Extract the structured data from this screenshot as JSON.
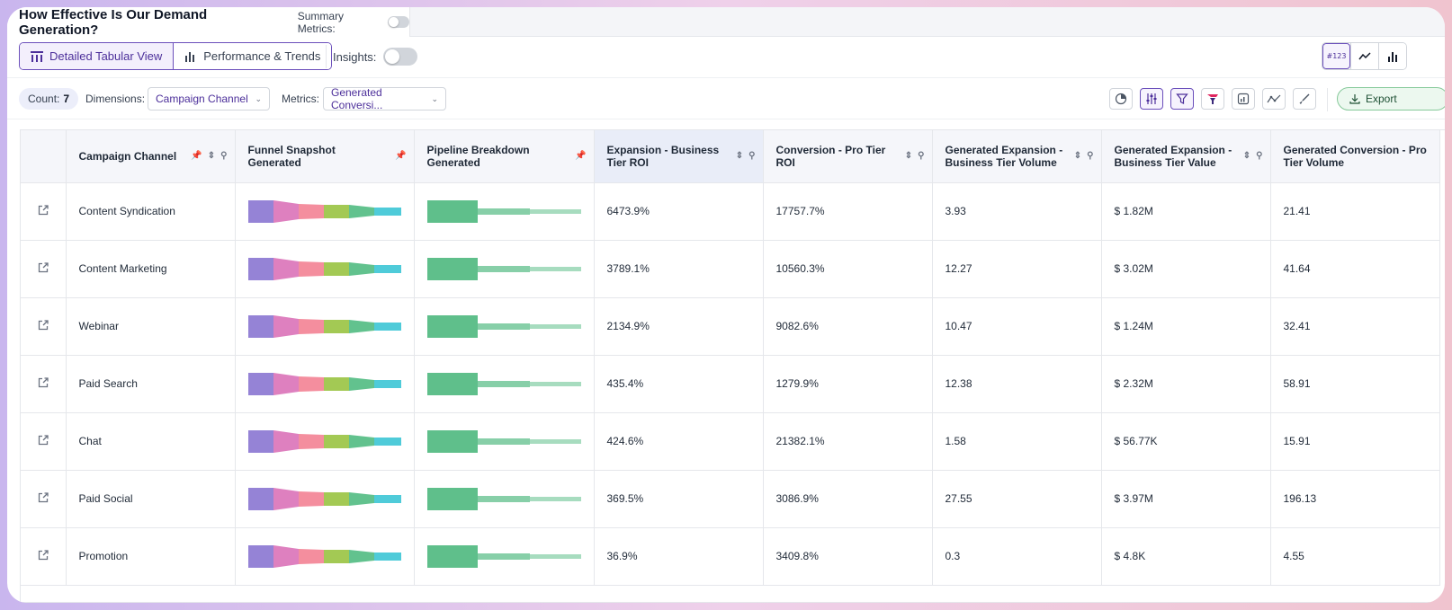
{
  "header": {
    "title": "How Effective Is Our Demand Generation?",
    "summary_label": "Summary Metrics:"
  },
  "view_tabs": {
    "detailed": "Detailed Tabular View",
    "performance": "Performance & Trends",
    "insights_label": "Insights:"
  },
  "viz_toggle": {
    "number_label": "#123"
  },
  "filters": {
    "count_label": "Count:",
    "count_value": "7",
    "dimensions_label": "Dimensions:",
    "dimensions_value": "Campaign Channel",
    "metrics_label": "Metrics:",
    "metrics_value": "Generated Conversi...",
    "export_label": "Export"
  },
  "table": {
    "headers": [
      "Campaign Channel",
      "Funnel Snapshot Generated",
      "Pipeline Breakdown Generated",
      "Expansion - Business Tier ROI",
      "Conversion - Pro Tier ROI",
      "Generated Expansion - Business Tier Volume",
      "Generated Expansion - Business Tier Value",
      "Generated Conversion - Pro Tier Volume"
    ],
    "rows": [
      {
        "channel": "Content Syndication",
        "exp_roi": "6473.9%",
        "conv_roi": "17757.7%",
        "exp_vol": "3.93",
        "exp_val": "$ 1.82M",
        "conv_vol": "21.41"
      },
      {
        "channel": "Content Marketing",
        "exp_roi": "3789.1%",
        "conv_roi": "10560.3%",
        "exp_vol": "12.27",
        "exp_val": "$ 3.02M",
        "conv_vol": "41.64"
      },
      {
        "channel": "Webinar",
        "exp_roi": "2134.9%",
        "conv_roi": "9082.6%",
        "exp_vol": "10.47",
        "exp_val": "$ 1.24M",
        "conv_vol": "32.41"
      },
      {
        "channel": "Paid Search",
        "exp_roi": "435.4%",
        "conv_roi": "1279.9%",
        "exp_vol": "12.38",
        "exp_val": "$ 2.32M",
        "conv_vol": "58.91"
      },
      {
        "channel": "Chat",
        "exp_roi": "424.6%",
        "conv_roi": "21382.1%",
        "exp_vol": "1.58",
        "exp_val": "$ 56.77K",
        "conv_vol": "15.91"
      },
      {
        "channel": "Paid Social",
        "exp_roi": "369.5%",
        "conv_roi": "3086.9%",
        "exp_vol": "27.55",
        "exp_val": "$ 3.97M",
        "conv_vol": "196.13"
      },
      {
        "channel": "Promotion",
        "exp_roi": "36.9%",
        "conv_roi": "3409.8%",
        "exp_vol": "0.3",
        "exp_val": "$ 4.8K",
        "conv_vol": "4.55"
      }
    ]
  },
  "colors": {
    "accent": "#6b4fbb",
    "funnel_stages": [
      "#9583d6",
      "#de80bf",
      "#f48e9e",
      "#a3c954",
      "#62c28e",
      "#4fcbd9"
    ],
    "pipeline": "#5fbf8b"
  }
}
